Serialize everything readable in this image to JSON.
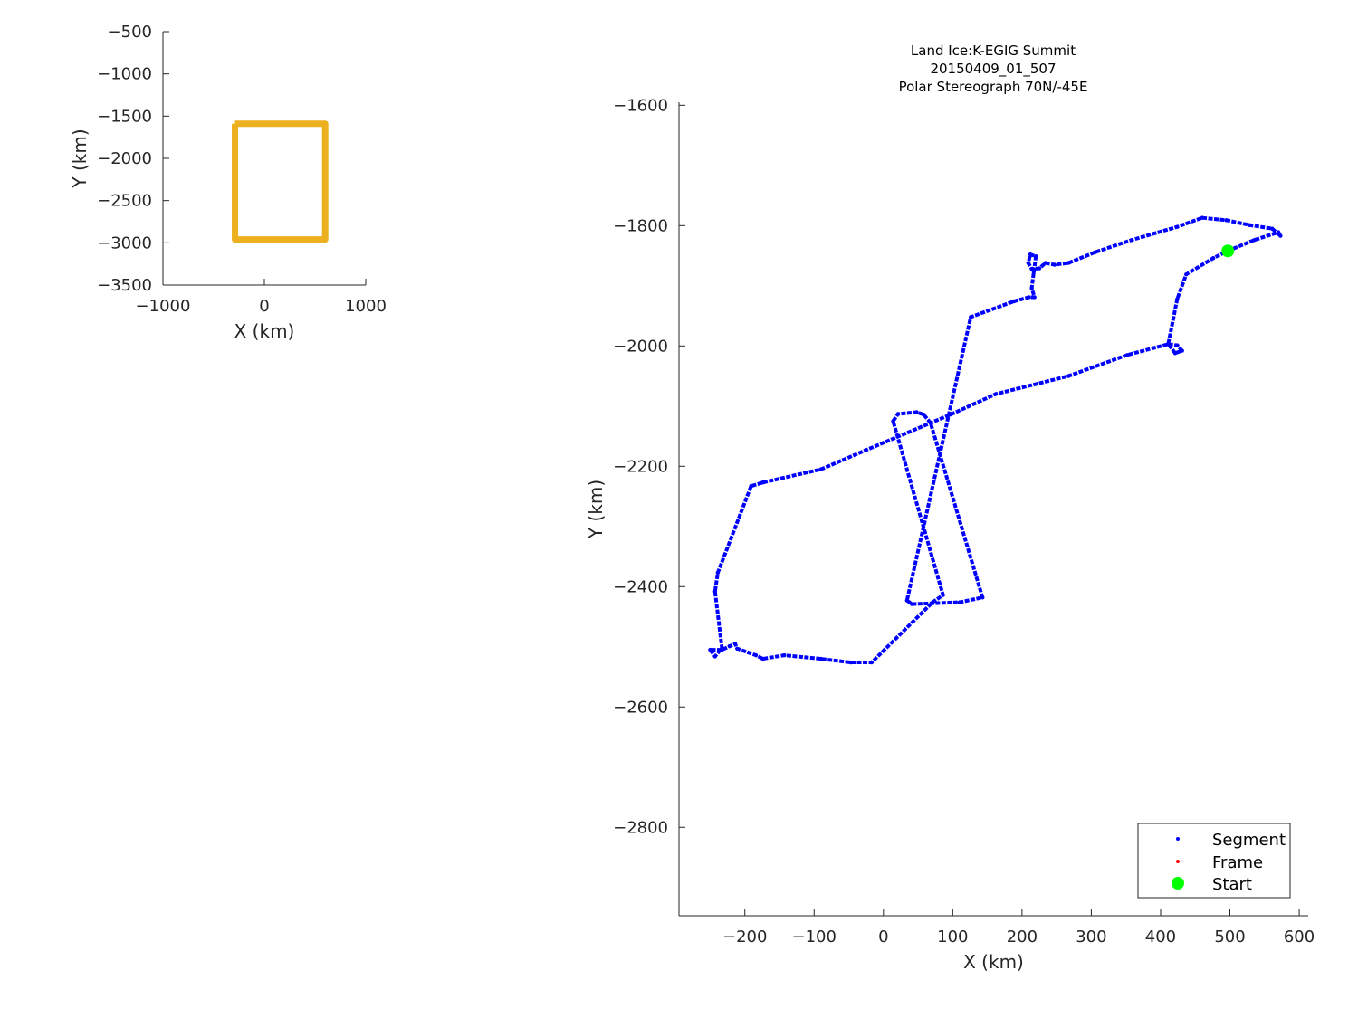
{
  "chart_data": [
    {
      "type": "line",
      "xlabel": "X (km)",
      "ylabel": "Y (km)",
      "xlim": [
        -1000,
        1000
      ],
      "ylim": [
        -3500,
        -500
      ],
      "xticks": [
        -1000,
        0,
        1000
      ],
      "yticks": [
        -500,
        -1000,
        -1500,
        -2000,
        -2500,
        -3000,
        -3500
      ],
      "grid": false,
      "series": [
        {
          "color": "#EDB120",
          "x": [
            -290,
            600,
            600,
            -290,
            -290
          ],
          "y": [
            -1590,
            -1590,
            -2960,
            -2960,
            -1590
          ]
        }
      ]
    },
    {
      "type": "scatter",
      "title": [
        "Land Ice:K-EGIG Summit",
        "20150409_01_507",
        "Polar Stereograph 70N/-45E"
      ],
      "xlabel": "X (km)",
      "ylabel": "Y (km)",
      "xlim": [
        -295,
        613
      ],
      "ylim": [
        -2947,
        -1595
      ],
      "xticks": [
        -200,
        -100,
        0,
        100,
        200,
        300,
        400,
        500,
        600
      ],
      "yticks": [
        -1600,
        -1800,
        -2000,
        -2200,
        -2400,
        -2600,
        -2800
      ],
      "grid": false,
      "legend_position": "bottom-right",
      "series": [
        {
          "name": "Segment",
          "color": "#0000FF",
          "x": [
            497,
            535,
            570,
            573,
            561,
            528,
            495,
            460,
            424,
            358,
            306,
            267,
            247,
            234,
            225,
            214,
            209,
            212,
            220,
            217,
            214,
            218,
            210,
            188,
            126,
            34,
            41,
            110,
            143,
            68,
            58,
            48,
            21,
            14,
            86,
            71,
            -17,
            -47,
            -90,
            -143,
            -174,
            -184,
            -211,
            -214,
            -222,
            -233,
            -250,
            -243,
            -233,
            -243,
            -239,
            -191,
            -174,
            -90,
            -25,
            97,
            162,
            267,
            352,
            411,
            424,
            431,
            421,
            411,
            424,
            437,
            476,
            497
          ],
          "y": [
            -1842,
            -1824,
            -1811,
            -1817,
            -1805,
            -1799,
            -1791,
            -1787,
            -1802,
            -1824,
            -1844,
            -1862,
            -1865,
            -1862,
            -1871,
            -1872,
            -1862,
            -1848,
            -1851,
            -1877,
            -1904,
            -1919,
            -1919,
            -1926,
            -1952,
            -2423,
            -2429,
            -2426,
            -2418,
            -2128,
            -2114,
            -2110,
            -2113,
            -2125,
            -2414,
            -2426,
            -2526,
            -2526,
            -2520,
            -2514,
            -2520,
            -2514,
            -2503,
            -2495,
            -2499,
            -2505,
            -2505,
            -2516,
            -2502,
            -2408,
            -2377,
            -2233,
            -2227,
            -2205,
            -2173,
            -2114,
            -2080,
            -2050,
            -2015,
            -1997,
            -1999,
            -2008,
            -2012,
            -1997,
            -1922,
            -1881,
            -1854,
            -1842
          ]
        },
        {
          "name": "Frame",
          "color": "#FF0000",
          "x": [],
          "y": []
        },
        {
          "name": "Start",
          "color": "#00FF00",
          "x": [
            497
          ],
          "y": [
            -1842
          ]
        }
      ]
    }
  ]
}
